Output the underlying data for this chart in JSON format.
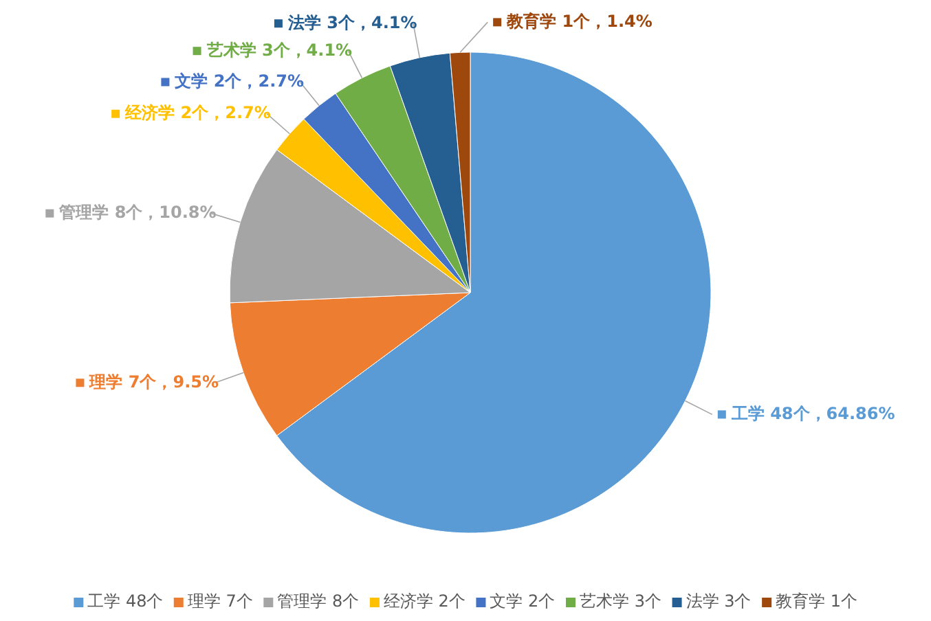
{
  "chart_data": {
    "type": "pie",
    "categories": [
      "工学 48个",
      "理学 7个",
      "管理学 8个",
      "经济学 2个",
      "文学 2个",
      "艺术学 3个",
      "法学 3个",
      "教育学 1个"
    ],
    "values": [
      48,
      7,
      8,
      2,
      2,
      3,
      3,
      1
    ],
    "colors": [
      "#5b9bd5",
      "#ed7d31",
      "#a5a5a5",
      "#ffc000",
      "#4472c4",
      "#70ad47",
      "#255e91",
      "#9e480e"
    ],
    "value_labels": [
      "工学 48个，64.86%",
      "理学 7个，9.5%",
      "管理学 8个，10.8%",
      "经济学 2个，2.7%",
      "文学 2个，2.7%",
      "艺术学 3个，4.1%",
      "法学 3个，4.1%",
      "教育学 1个，1.4%"
    ],
    "legend": "bottom"
  }
}
